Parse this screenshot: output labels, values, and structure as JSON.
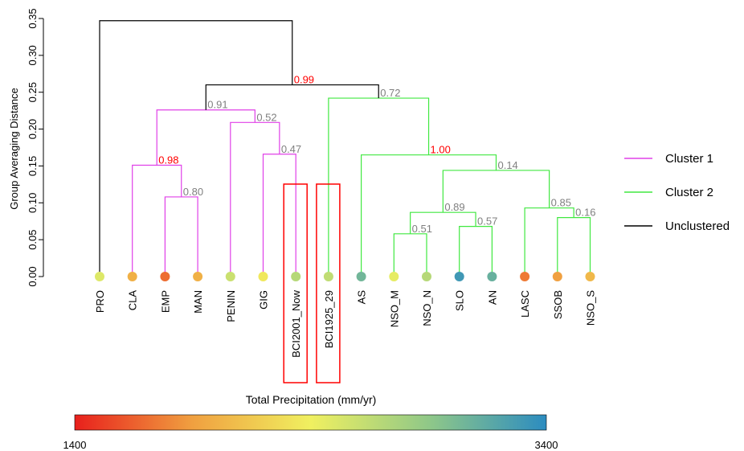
{
  "chart_data": {
    "type": "dendrogram",
    "ylabel": "Group Averaging Distance",
    "ylim": [
      0,
      0.35
    ],
    "yticks": [
      "0.00",
      "0.05",
      "0.10",
      "0.15",
      "0.20",
      "0.25",
      "0.30",
      "0.35"
    ],
    "leaves": [
      {
        "label": "PRO",
        "precip": 2500
      },
      {
        "label": "CLA",
        "precip": 2000
      },
      {
        "label": "EMP",
        "precip": 1700
      },
      {
        "label": "MAN",
        "precip": 2000
      },
      {
        "label": "PENIN",
        "precip": 2600
      },
      {
        "label": "GIG",
        "precip": 2350
      },
      {
        "label": "BCI2001_Now",
        "precip": 2700
      },
      {
        "label": "BCI1925_29",
        "precip": 2650
      },
      {
        "label": "AS",
        "precip": 3050
      },
      {
        "label": "NSO_M",
        "precip": 2450
      },
      {
        "label": "NSO_N",
        "precip": 2700
      },
      {
        "label": "SLO",
        "precip": 3300
      },
      {
        "label": "AN",
        "precip": 3100
      },
      {
        "label": "LASC",
        "precip": 1750
      },
      {
        "label": "SSOB",
        "precip": 1900
      },
      {
        "label": "NSO_S",
        "precip": 2050
      }
    ],
    "merges": [
      {
        "id": "m1",
        "left": "EMP",
        "right": "MAN",
        "height": 0.108,
        "label": "0.80",
        "label_color": "#808080",
        "cluster": "Cluster 1"
      },
      {
        "id": "m2",
        "left": "CLA",
        "right": "m1",
        "height": 0.151,
        "label": "0.98",
        "label_color": "#ff0000",
        "cluster": "Cluster 1"
      },
      {
        "id": "m3",
        "left": "GIG",
        "right": "BCI2001_Now",
        "height": 0.166,
        "label": "0.47",
        "label_color": "#808080",
        "cluster": "Cluster 1"
      },
      {
        "id": "m4",
        "left": "PENIN",
        "right": "m3",
        "height": 0.209,
        "label": "0.52",
        "label_color": "#808080",
        "cluster": "Cluster 1"
      },
      {
        "id": "m5",
        "left": "m2",
        "right": "m4",
        "height": 0.226,
        "label": "0.91",
        "label_color": "#808080",
        "cluster": "Cluster 1"
      },
      {
        "id": "m6",
        "left": "NSO_M",
        "right": "NSO_N",
        "height": 0.058,
        "label": "0.51",
        "label_color": "#808080",
        "cluster": "Cluster 2"
      },
      {
        "id": "m7",
        "left": "SLO",
        "right": "AN",
        "height": 0.068,
        "label": "0.57",
        "label_color": "#808080",
        "cluster": "Cluster 2"
      },
      {
        "id": "m8",
        "left": "m6",
        "right": "m7",
        "height": 0.087,
        "label": "0.89",
        "label_color": "#808080",
        "cluster": "Cluster 2"
      },
      {
        "id": "m9",
        "left": "SSOB",
        "right": "NSO_S",
        "height": 0.08,
        "label": "0.16",
        "label_color": "#808080",
        "cluster": "Cluster 2"
      },
      {
        "id": "m10",
        "left": "LASC",
        "right": "m9",
        "height": 0.093,
        "label": "0.85",
        "label_color": "#808080",
        "cluster": "Cluster 2"
      },
      {
        "id": "m11",
        "left": "m8",
        "right": "m10",
        "height": 0.144,
        "label": "0.14",
        "label_color": "#808080",
        "cluster": "Cluster 2"
      },
      {
        "id": "m12",
        "left": "AS",
        "right": "m11",
        "height": 0.165,
        "label": "1.00",
        "label_color": "#ff0000",
        "cluster": "Cluster 2"
      },
      {
        "id": "m13",
        "left": "BCI1925_29",
        "right": "m12",
        "height": 0.242,
        "label": "0.72",
        "label_color": "#808080",
        "cluster": "Cluster 2"
      },
      {
        "id": "m14",
        "left": "m5",
        "right": "m13",
        "height": 0.26,
        "label": "0.99",
        "label_color": "#ff0000",
        "cluster": "Unclustered"
      },
      {
        "id": "m15",
        "left": "PRO",
        "right": "m14",
        "height": 0.347,
        "label": "",
        "label_color": "#808080",
        "cluster": "Unclustered"
      }
    ],
    "highlighted_leaves": [
      "BCI2001_Now",
      "BCI1925_29"
    ],
    "highlight_color": "#ff0000",
    "legend": {
      "placement": "right",
      "entries": [
        {
          "name": "Cluster 1",
          "color": "#e040e8"
        },
        {
          "name": "Cluster 2",
          "color": "#40e840"
        },
        {
          "name": "Unclustered",
          "color": "#000000"
        }
      ]
    },
    "colorbar": {
      "title": "Total Precipitation (mm/yr)",
      "min": 1400,
      "max": 3400,
      "min_label": "1400",
      "max_label": "3400",
      "stops": [
        "#e8201c",
        "#f0a040",
        "#f0f060",
        "#90c888",
        "#2c8cc0"
      ]
    }
  }
}
